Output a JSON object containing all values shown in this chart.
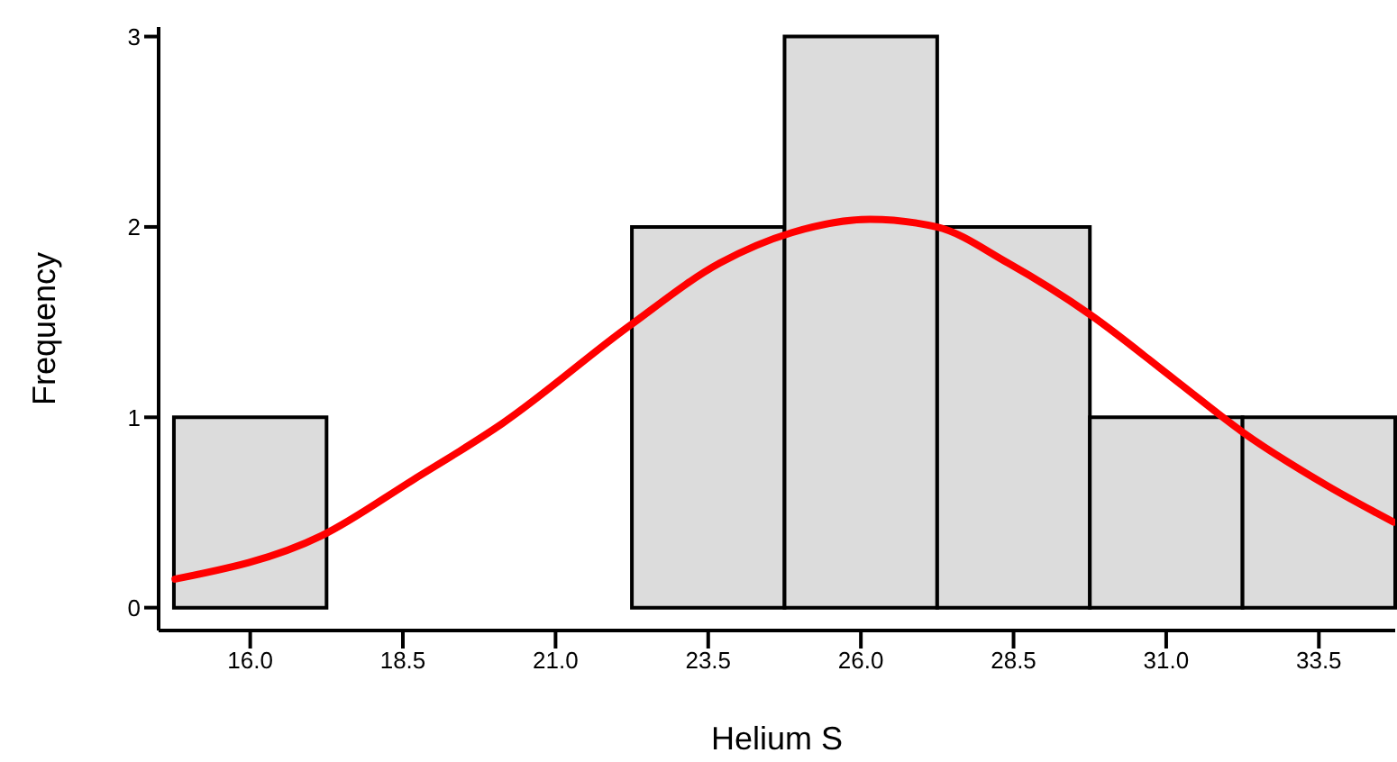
{
  "chart_data": {
    "type": "histogram",
    "xlabel": "Helium S",
    "ylabel": "Frequency",
    "bins": [
      14.75,
      17.25,
      19.75,
      22.25,
      24.75,
      27.25,
      29.75,
      32.25,
      34.75
    ],
    "values": [
      1,
      0,
      0,
      2,
      3,
      2,
      1,
      1
    ],
    "color": "#dcdcdc",
    "series": [
      {
        "type": "line",
        "color": "#ff0000",
        "x": [
          14.77,
          17.18,
          18.66,
          20.14,
          22.21,
          23.69,
          24.87,
          26.15,
          27.24,
          28.41,
          29.75,
          31.17,
          32.26,
          33.64,
          34.72
        ],
        "values": [
          0.15,
          0.38,
          0.67,
          0.97,
          1.48,
          1.81,
          1.97,
          2.04,
          2.0,
          1.81,
          1.54,
          1.19,
          0.92,
          0.64,
          0.45
        ]
      }
    ],
    "xlim": [
      14.5,
      34.75
    ],
    "xticks": [
      {
        "value": 16,
        "label": "16.0"
      },
      {
        "value": 18.5,
        "label": "18.5"
      },
      {
        "value": 21,
        "label": "21.0"
      },
      {
        "value": 23.5,
        "label": "23.5"
      },
      {
        "value": 26,
        "label": "26.0"
      },
      {
        "value": 28.5,
        "label": "28.5"
      },
      {
        "value": 31,
        "label": "31.0"
      },
      {
        "value": 33.5,
        "label": "33.5"
      }
    ],
    "ylim": [
      -0.12,
      3.05
    ],
    "yticks": [
      0,
      1,
      2,
      3
    ]
  }
}
